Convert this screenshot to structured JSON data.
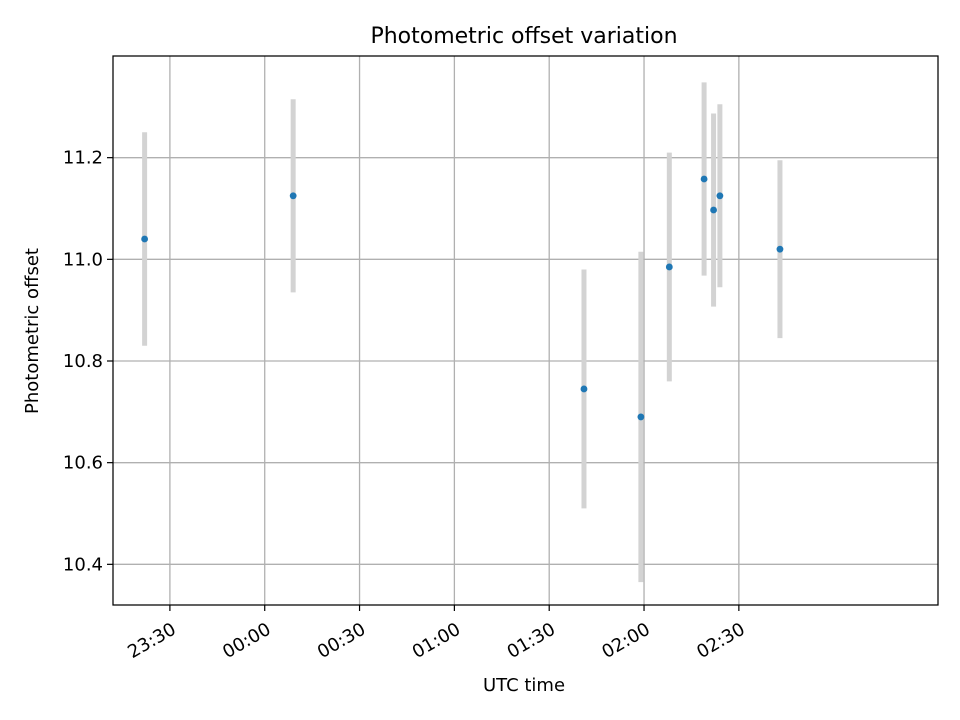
{
  "chart_data": {
    "type": "scatter",
    "title": "Photometric offset variation",
    "xlabel": "UTC time",
    "ylabel": "Photometric offset",
    "x_unit": "UTC time of day (hh:mm); times after midnight belong to the next day",
    "xlim": [
      "23:12",
      "03:33"
    ],
    "ylim": [
      10.32,
      11.4
    ],
    "grid": true,
    "x_ticks": [
      "23:30",
      "00:00",
      "00:30",
      "01:00",
      "01:30",
      "02:00",
      "02:30"
    ],
    "y_ticks": [
      10.4,
      10.6,
      10.8,
      11.0,
      11.2
    ],
    "y_tick_labels": [
      "10.4",
      "10.6",
      "10.8",
      "11.0",
      "11.2"
    ],
    "colors": {
      "point": "#1f77b4",
      "errorbar": "#d3d3d3",
      "grid": "#b0b0b0",
      "axes": "#000000"
    },
    "series": [
      {
        "points": [
          {
            "x": "23:22",
            "y": 11.04,
            "yerr": 0.21
          },
          {
            "x": "00:09",
            "y": 11.125,
            "yerr": 0.19
          },
          {
            "x": "01:41",
            "y": 10.745,
            "yerr": 0.235
          },
          {
            "x": "01:59",
            "y": 10.69,
            "yerr": 0.325
          },
          {
            "x": "02:08",
            "y": 10.985,
            "yerr": 0.225
          },
          {
            "x": "02:19",
            "y": 11.158,
            "yerr": 0.19
          },
          {
            "x": "02:22",
            "y": 11.097,
            "yerr": 0.19
          },
          {
            "x": "02:24",
            "y": 11.125,
            "yerr": 0.18
          },
          {
            "x": "02:43",
            "y": 11.02,
            "yerr": 0.175
          }
        ]
      }
    ]
  }
}
